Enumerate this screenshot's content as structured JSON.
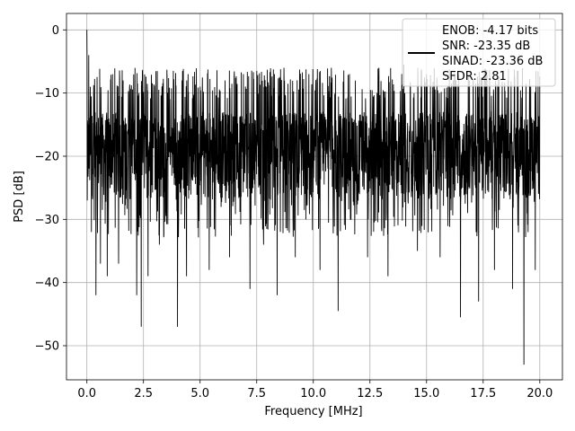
{
  "chart_data": {
    "type": "line",
    "title": "",
    "xlabel": "Frequency [MHz]",
    "ylabel": "PSD [dB]",
    "xlim": [
      -0.9,
      21.0
    ],
    "ylim": [
      -55.4,
      2.6
    ],
    "xticks": [
      0.0,
      2.5,
      5.0,
      7.5,
      10.0,
      12.5,
      15.0,
      17.5,
      20.0
    ],
    "xtick_labels": [
      "0.0",
      "2.5",
      "5.0",
      "7.5",
      "10.0",
      "12.5",
      "15.0",
      "17.5",
      "20.0"
    ],
    "yticks": [
      0,
      -10,
      -20,
      -30,
      -40,
      -50
    ],
    "ytick_labels": [
      "0",
      "−10",
      "−20",
      "−30",
      "−40",
      "−50"
    ],
    "grid": true,
    "legend": {
      "location": "top-right",
      "entries": [
        "ENOB: -4.17 bits",
        "SNR: -23.35 dB",
        "SINAD: -23.36 dB",
        "SFDR: 2.81"
      ]
    },
    "series": [
      {
        "color": "#000000",
        "x_range": [
          0,
          20
        ],
        "peak": {
          "x": 0.0,
          "y": 0.0
        },
        "noise_band": [
          -27,
          -13
        ],
        "upper_spikes": [
          {
            "x": 0.08,
            "y": -4
          },
          {
            "x": 0.15,
            "y": -9
          },
          {
            "x": 0.9,
            "y": -9
          },
          {
            "x": 1.6,
            "y": -8
          },
          {
            "x": 2.3,
            "y": -10
          },
          {
            "x": 3.2,
            "y": -9.5
          },
          {
            "x": 4.2,
            "y": -8
          },
          {
            "x": 5.4,
            "y": -7.5
          },
          {
            "x": 6.1,
            "y": -8
          },
          {
            "x": 7.5,
            "y": -6.5
          },
          {
            "x": 8.7,
            "y": -6
          },
          {
            "x": 9.8,
            "y": -7
          },
          {
            "x": 10.8,
            "y": -6
          },
          {
            "x": 11.6,
            "y": -7
          },
          {
            "x": 12.9,
            "y": -6
          },
          {
            "x": 14.0,
            "y": -5.5
          },
          {
            "x": 15.0,
            "y": -7
          },
          {
            "x": 16.3,
            "y": -8
          },
          {
            "x": 17.4,
            "y": -7.5
          },
          {
            "x": 18.6,
            "y": -8
          },
          {
            "x": 19.6,
            "y": -9
          }
        ],
        "lower_spikes": [
          {
            "x": 0.2,
            "y": -32
          },
          {
            "x": 0.4,
            "y": -42
          },
          {
            "x": 0.6,
            "y": -37
          },
          {
            "x": 0.9,
            "y": -39
          },
          {
            "x": 1.4,
            "y": -37
          },
          {
            "x": 2.2,
            "y": -42
          },
          {
            "x": 2.4,
            "y": -47
          },
          {
            "x": 2.7,
            "y": -39
          },
          {
            "x": 3.2,
            "y": -34
          },
          {
            "x": 4.0,
            "y": -47
          },
          {
            "x": 4.4,
            "y": -39
          },
          {
            "x": 5.4,
            "y": -38
          },
          {
            "x": 6.3,
            "y": -36
          },
          {
            "x": 7.2,
            "y": -41
          },
          {
            "x": 7.8,
            "y": -34
          },
          {
            "x": 8.4,
            "y": -42
          },
          {
            "x": 9.2,
            "y": -36
          },
          {
            "x": 10.3,
            "y": -38
          },
          {
            "x": 11.1,
            "y": -44.5
          },
          {
            "x": 12.4,
            "y": -36
          },
          {
            "x": 13.3,
            "y": -39
          },
          {
            "x": 14.6,
            "y": -35
          },
          {
            "x": 15.6,
            "y": -36
          },
          {
            "x": 16.5,
            "y": -45.5
          },
          {
            "x": 17.3,
            "y": -43
          },
          {
            "x": 18.0,
            "y": -38
          },
          {
            "x": 18.8,
            "y": -41
          },
          {
            "x": 19.3,
            "y": -53
          },
          {
            "x": 19.8,
            "y": -38
          }
        ]
      }
    ]
  }
}
